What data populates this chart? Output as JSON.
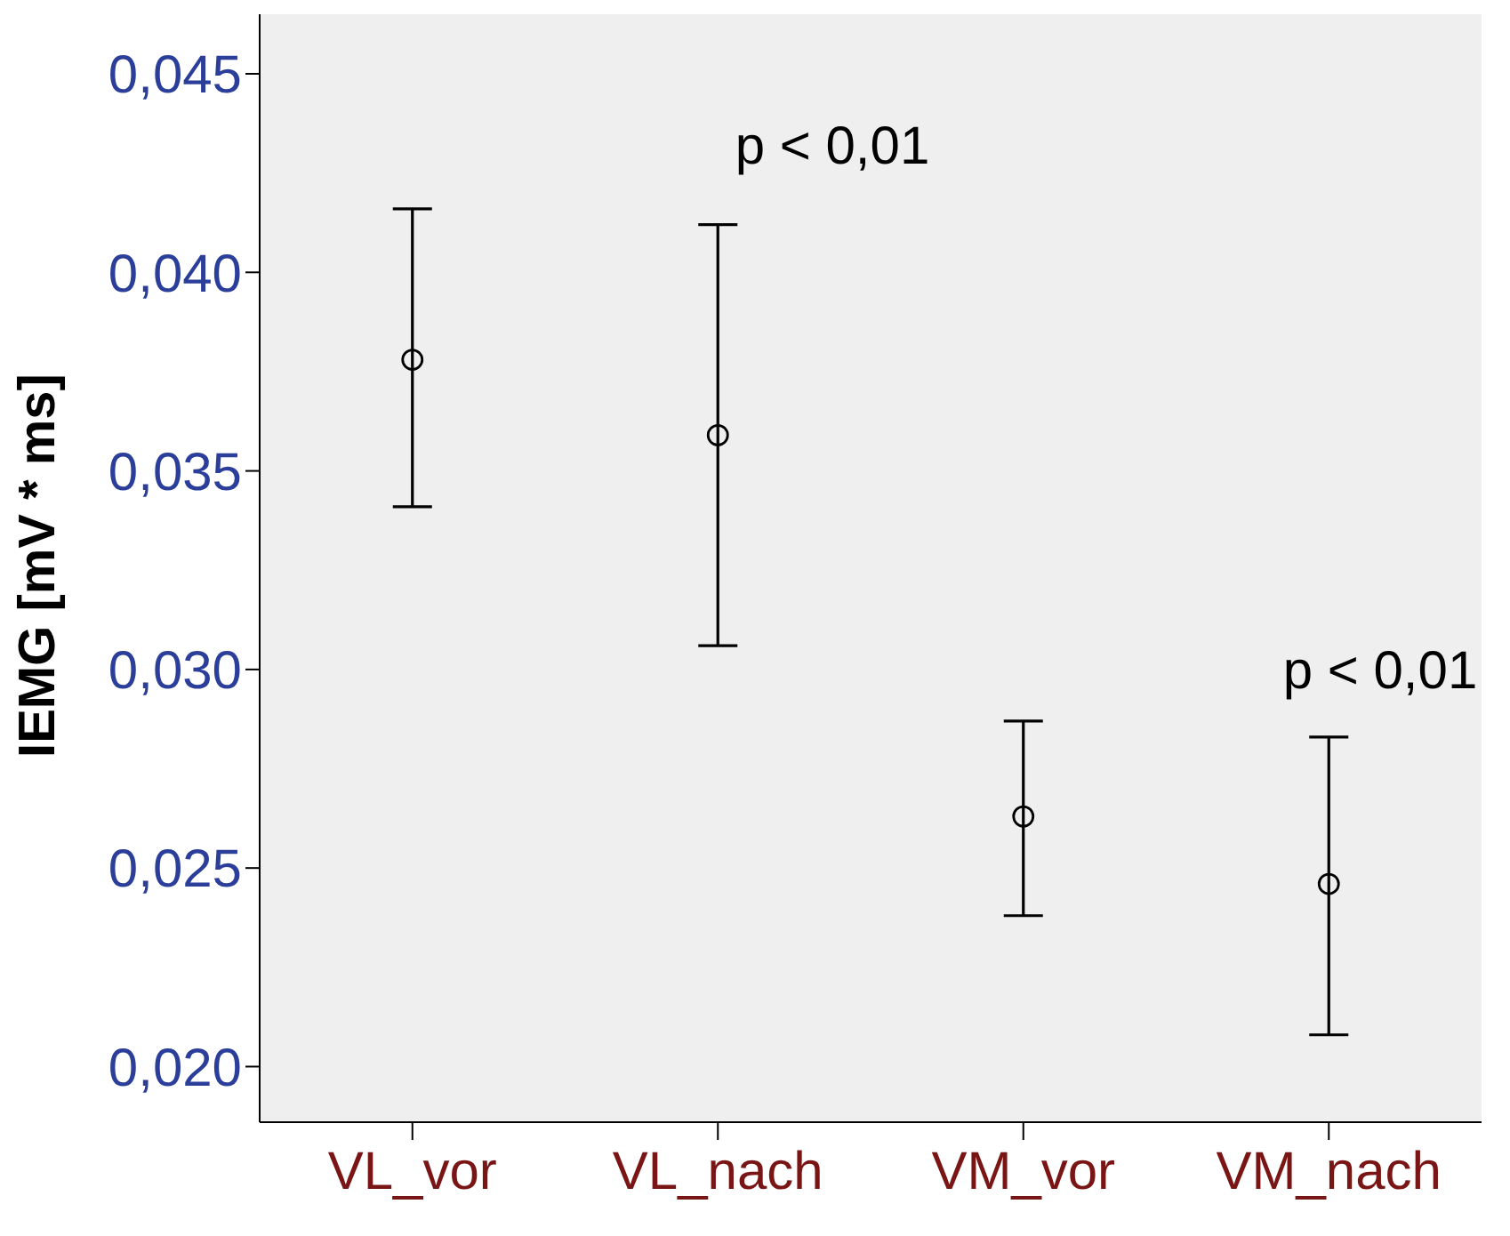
{
  "chart_data": {
    "type": "scatter",
    "ylabel": "IEMG [mV * ms]",
    "categories": [
      "VL_vor",
      "VL_nach",
      "VM_vor",
      "VM_nach"
    ],
    "values": [
      0.0378,
      0.0359,
      0.0263,
      0.0246
    ],
    "errors": [
      [
        0.0341,
        0.0416
      ],
      [
        0.0306,
        0.0412
      ],
      [
        0.0238,
        0.0287
      ],
      [
        0.0208,
        0.0283
      ]
    ],
    "color": "#000000",
    "marker": "circle",
    "ylim": [
      0.0186,
      0.0465
    ],
    "yticks": [
      {
        "value": 0.02,
        "label": "0,020"
      },
      {
        "value": 0.025,
        "label": "0,025"
      },
      {
        "value": 0.03,
        "label": "0,030"
      },
      {
        "value": 0.035,
        "label": "0,035"
      },
      {
        "value": 0.04,
        "label": "0,040"
      },
      {
        "value": 0.045,
        "label": "0,045"
      }
    ],
    "annotations": [
      "p < 0,01",
      "p < 0,01"
    ],
    "grid": false,
    "legend": false
  }
}
